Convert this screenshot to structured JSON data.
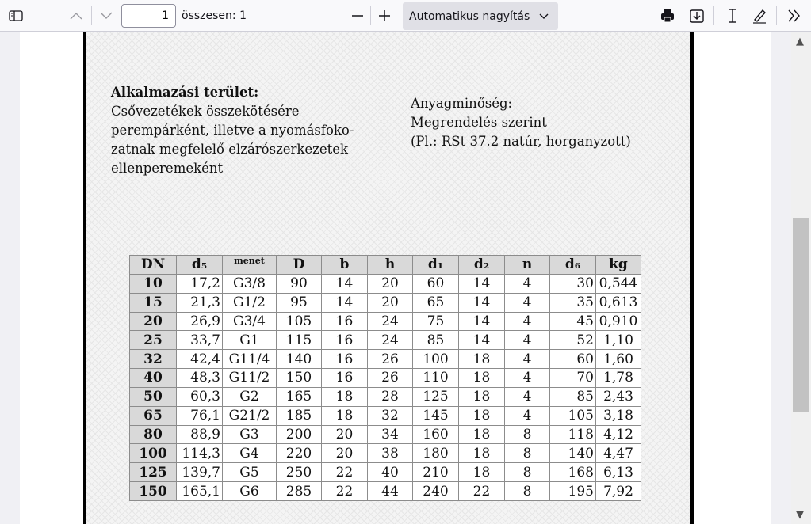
{
  "toolbar": {
    "page_number": "1",
    "page_total": "összesen: 1",
    "zoom_label": "Automatikus nagyítás",
    "icons": [
      "sidebar-toggle-icon",
      "chevron-up-icon",
      "chevron-down-icon",
      "minus-icon",
      "plus-icon",
      "chevron-down-icon",
      "print-icon",
      "download-icon",
      "text-cursor-icon",
      "pen-icon",
      "double-chevron-right-icon"
    ]
  },
  "document": {
    "app_title": "Alkalmazási terület:",
    "app_lines": [
      "Csővezetékek összekötésére",
      "perempárként, illetve a nyomásfoko-",
      "zatnak megfelelő elzárószerkezetek",
      "ellenperemeként"
    ],
    "material_lines": [
      "Anyagminőség:",
      "Megrendelés szerint",
      "(Pl.: RSt 37.2 natúr, horganyzott)"
    ],
    "table": {
      "headers": [
        "DN",
        "d₅",
        "menet",
        "D",
        "b",
        "h",
        "d₁",
        "d₂",
        "n",
        "d₆",
        "kg"
      ],
      "rows": [
        [
          "10",
          "17,2",
          "G3/8",
          "90",
          "14",
          "20",
          "60",
          "14",
          "4",
          "30",
          "0,544"
        ],
        [
          "15",
          "21,3",
          "G1/2",
          "95",
          "14",
          "20",
          "65",
          "14",
          "4",
          "35",
          "0,613"
        ],
        [
          "20",
          "26,9",
          "G3/4",
          "105",
          "16",
          "24",
          "75",
          "14",
          "4",
          "45",
          "0,910"
        ],
        [
          "25",
          "33,7",
          "G1",
          "115",
          "16",
          "24",
          "85",
          "14",
          "4",
          "52",
          "1,10"
        ],
        [
          "32",
          "42,4",
          "G11/4",
          "140",
          "16",
          "26",
          "100",
          "18",
          "4",
          "60",
          "1,60"
        ],
        [
          "40",
          "48,3",
          "G11/2",
          "150",
          "16",
          "26",
          "110",
          "18",
          "4",
          "70",
          "1,78"
        ],
        [
          "50",
          "60,3",
          "G2",
          "165",
          "18",
          "28",
          "125",
          "18",
          "4",
          "85",
          "2,43"
        ],
        [
          "65",
          "76,1",
          "G21/2",
          "185",
          "18",
          "32",
          "145",
          "18",
          "4",
          "105",
          "3,18"
        ],
        [
          "80",
          "88,9",
          "G3",
          "200",
          "20",
          "34",
          "160",
          "18",
          "8",
          "118",
          "4,12"
        ],
        [
          "100",
          "114,3",
          "G4",
          "220",
          "20",
          "38",
          "180",
          "18",
          "8",
          "140",
          "4,47"
        ],
        [
          "125",
          "139,7",
          "G5",
          "250",
          "22",
          "40",
          "210",
          "18",
          "8",
          "168",
          "6,13"
        ],
        [
          "150",
          "165,1",
          "G6",
          "285",
          "22",
          "44",
          "240",
          "22",
          "8",
          "195",
          "7,92"
        ]
      ]
    }
  }
}
